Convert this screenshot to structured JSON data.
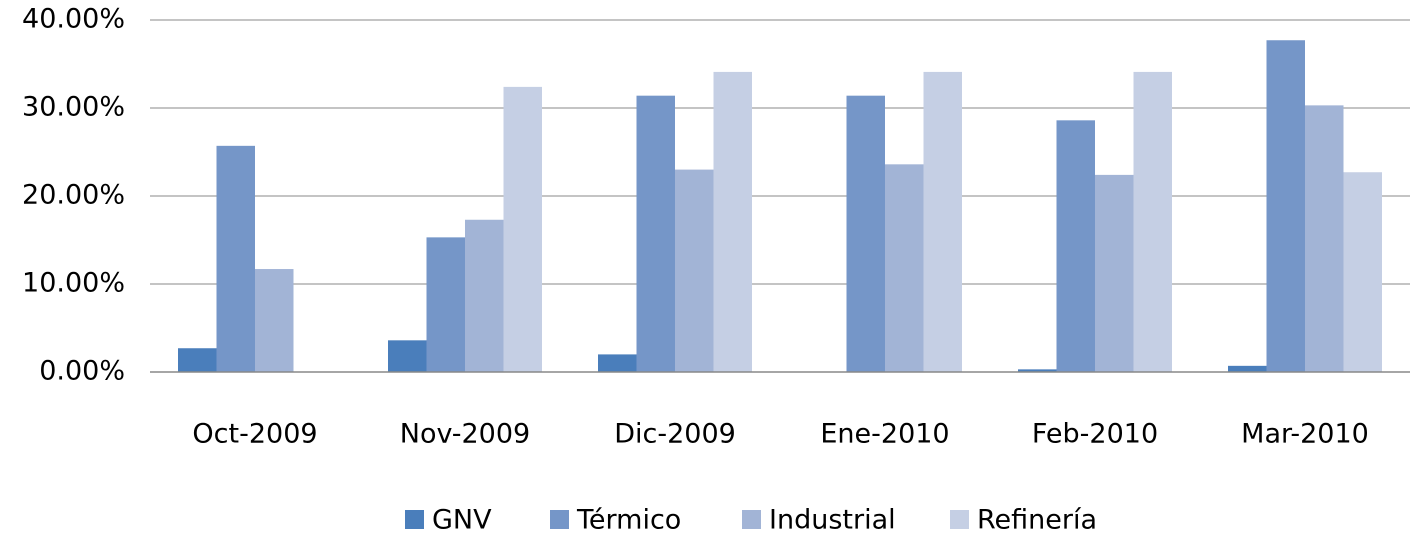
{
  "chart_data": {
    "type": "bar",
    "categories": [
      "Oct-2009",
      "Nov-2009",
      "Dic-2009",
      "Ene-2010",
      "Feb-2010",
      "Mar-2010"
    ],
    "series": [
      {
        "name": "GNV",
        "color": "#4a7ebb",
        "values": [
          2.7,
          3.6,
          2.0,
          0,
          0.3,
          0.7
        ]
      },
      {
        "name": "Térmico",
        "color": "#7596c8",
        "values": [
          25.7,
          15.3,
          31.4,
          31.4,
          28.6,
          37.7
        ]
      },
      {
        "name": "Industrial",
        "color": "#a2b4d6",
        "values": [
          11.7,
          17.3,
          23.0,
          23.6,
          22.4,
          30.3
        ]
      },
      {
        "name": "Refinería",
        "color": "#c5cfe4",
        "values": [
          0,
          32.4,
          34.1,
          34.1,
          34.1,
          22.7
        ]
      }
    ],
    "ylim": [
      0,
      40
    ],
    "yticks": [
      {
        "value": 0,
        "label": "0.00%"
      },
      {
        "value": 10,
        "label": "10.00%"
      },
      {
        "value": 20,
        "label": "20.00%"
      },
      {
        "value": 30,
        "label": "30.00%"
      },
      {
        "value": 40,
        "label": "40.00%"
      }
    ],
    "grid": true,
    "legend": "bottom"
  }
}
